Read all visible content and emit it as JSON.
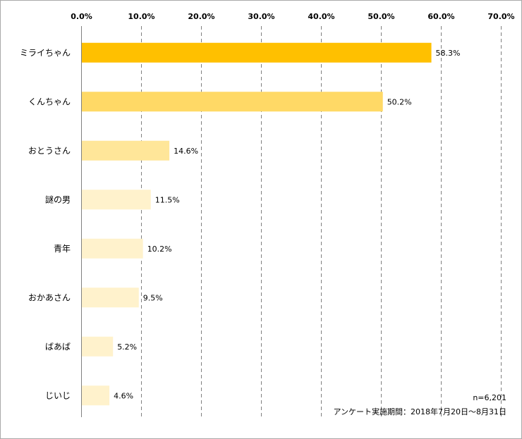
{
  "chart_data": {
    "type": "bar",
    "orientation": "horizontal",
    "categories": [
      "ミライちゃん",
      "くんちゃん",
      "おとうさん",
      "謎の男",
      "青年",
      "おかあさん",
      "ばあば",
      "じいじ"
    ],
    "values": [
      58.3,
      50.2,
      14.6,
      11.5,
      10.2,
      9.5,
      5.2,
      4.6
    ],
    "data_labels": [
      "58.3%",
      "50.2%",
      "14.6%",
      "11.5%",
      "10.2%",
      "9.5%",
      "5.2%",
      "4.6%"
    ],
    "bar_colors": [
      "#FFC000",
      "#FFD966",
      "#FFE699",
      "#FFF2CC",
      "#FFF2CC",
      "#FFF2CC",
      "#FFF2CC",
      "#FFF2CC"
    ],
    "xlim": [
      0,
      70
    ],
    "x_ticks": [
      0,
      10,
      20,
      30,
      40,
      50,
      60,
      70
    ],
    "x_tick_labels": [
      "0.0%",
      "10.0%",
      "20.0%",
      "30.0%",
      "40.0%",
      "50.0%",
      "60.0%",
      "70.0%"
    ],
    "x_axis_position": "top",
    "grid": "vertical dashed",
    "legend": "none"
  },
  "notes": {
    "sample_size": "n=6,201",
    "survey_period": "アンケート実施期間：2018年7月20日～8月31日"
  }
}
